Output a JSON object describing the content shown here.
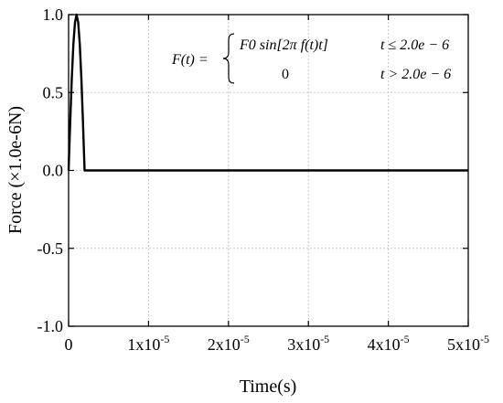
{
  "chart_data": {
    "type": "line",
    "title": "",
    "xlabel": "Time(s)",
    "ylabel": "Force (×1.0e-6N)",
    "xlim": [
      0,
      5e-05
    ],
    "ylim": [
      -1.0,
      1.0
    ],
    "grid": true,
    "x_ticks": [
      {
        "value": 0,
        "base": "0",
        "exp": ""
      },
      {
        "value": 1e-05,
        "base": "1x10",
        "exp": "-5"
      },
      {
        "value": 2e-05,
        "base": "2x10",
        "exp": "-5"
      },
      {
        "value": 3e-05,
        "base": "3x10",
        "exp": "-5"
      },
      {
        "value": 4e-05,
        "base": "4x10",
        "exp": "-5"
      },
      {
        "value": 5e-05,
        "base": "5x10",
        "exp": "-5"
      }
    ],
    "y_ticks": [
      {
        "value": 1.0,
        "label": "1.0"
      },
      {
        "value": 0.5,
        "label": "0.5"
      },
      {
        "value": 0.0,
        "label": "0.0"
      },
      {
        "value": -0.5,
        "label": "-0.5"
      },
      {
        "value": -1.0,
        "label": "-1.0"
      }
    ],
    "series": [
      {
        "color": "#000000",
        "x": [
          0,
          2e-07,
          4e-07,
          6e-07,
          8e-07,
          1e-06,
          1.2e-06,
          1.4e-06,
          1.6e-06,
          1.8e-06,
          2e-06,
          2.2e-06,
          1e-05,
          2e-05,
          3e-05,
          4e-05,
          5e-05
        ],
        "y": [
          0,
          0.31,
          0.59,
          0.81,
          0.95,
          1.0,
          0.95,
          0.81,
          0.59,
          0.31,
          0.0,
          0.0,
          0.0,
          0.0,
          0.0,
          0.0,
          0.0
        ]
      }
    ],
    "annotation": {
      "lhs": "F(t) =",
      "case1_expr": "F0 sin[2π f(t)t]",
      "case1_cond": "t ≤ 2.0e − 6",
      "case2_expr": "0",
      "case2_cond": "t > 2.0e − 6"
    }
  }
}
